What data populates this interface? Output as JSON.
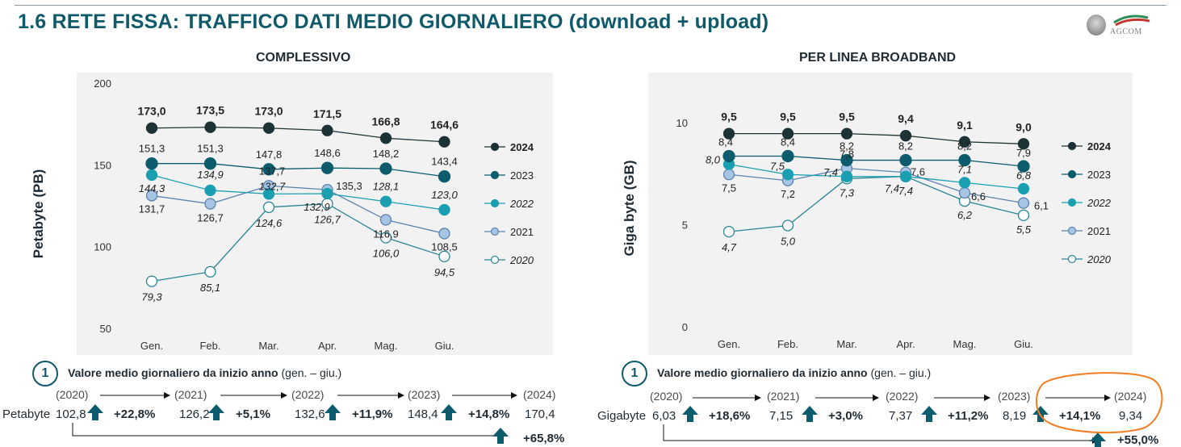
{
  "page": {
    "title": "1.6 RETE FISSA: TRAFFICO DATI MEDIO GIORNALIERO (download + upload)",
    "logo_text": "AGCOM"
  },
  "colors": {
    "2024": "#1c3336",
    "2023": "#0d5c6e",
    "2022": "#1a9fb0",
    "2021": "#8fb4d9",
    "2020": "#2a8694",
    "title": "#0e5a6a",
    "highlight": "#ef7d22"
  },
  "chart_data": [
    {
      "type": "line",
      "title": "COMPLESSIVO",
      "ylabel": "Petabyte (PB)",
      "ylim": [
        50,
        200
      ],
      "yticks": [
        "50",
        "100",
        "150",
        "200"
      ],
      "categories": [
        "Gen.",
        "Feb.",
        "Mar.",
        "Apr.",
        "Mag.",
        "Giu."
      ],
      "series": [
        {
          "name": "2024",
          "values": [
            173.0,
            173.5,
            173.0,
            171.5,
            166.8,
            164.6
          ],
          "labels": [
            "173,0",
            "173,5",
            "173,0",
            "171,5",
            "166,8",
            "164,6"
          ]
        },
        {
          "name": "2023",
          "values": [
            151.3,
            151.3,
            147.8,
            148.6,
            148.2,
            143.4
          ],
          "labels": [
            "151,3",
            "151,3",
            "147,8",
            "148,6",
            "148,2",
            "143,4"
          ]
        },
        {
          "name": "2022",
          "values": [
            144.3,
            134.9,
            132.7,
            132.9,
            128.1,
            123.0
          ],
          "labels": [
            "144,3",
            "134,9",
            "132,7",
            "132,9",
            "128,1",
            "123,0"
          ]
        },
        {
          "name": "2021",
          "values": [
            131.7,
            126.7,
            137.7,
            135.3,
            116.9,
            108.5
          ],
          "labels": [
            "131,7",
            "126,7",
            "137,7",
            "135,3",
            "116,9",
            "108,5"
          ]
        },
        {
          "name": "2020",
          "values": [
            79.3,
            85.1,
            124.6,
            126.7,
            106.0,
            94.5
          ],
          "labels": [
            "79,3",
            "85,1",
            "124,6",
            "126,7",
            "106,0",
            "94,5"
          ]
        }
      ]
    },
    {
      "type": "line",
      "title": "PER LINEA BROADBAND",
      "ylabel": "Giga byte (GB)",
      "ylim": [
        0,
        10
      ],
      "yticks": [
        "0",
        "5",
        "10"
      ],
      "categories": [
        "Gen.",
        "Feb.",
        "Mar.",
        "Apr.",
        "Mag.",
        "Giu."
      ],
      "series": [
        {
          "name": "2024",
          "values": [
            9.5,
            9.5,
            9.5,
            9.4,
            9.1,
            9.0
          ],
          "labels": [
            "9,5",
            "9,5",
            "9,5",
            "9,4",
            "9,1",
            "9,0"
          ]
        },
        {
          "name": "2023",
          "values": [
            8.4,
            8.4,
            8.2,
            8.2,
            8.2,
            7.9
          ],
          "labels": [
            "8,4",
            "8,4",
            "8,2",
            "8,2",
            "8,2",
            "7,9"
          ]
        },
        {
          "name": "2022",
          "values": [
            8.0,
            7.5,
            7.4,
            7.4,
            7.1,
            6.8
          ],
          "labels": [
            "8,0",
            "7,5",
            "7,4",
            "7,4",
            "7,1",
            "6,8"
          ]
        },
        {
          "name": "2021",
          "values": [
            7.5,
            7.2,
            7.8,
            7.6,
            6.6,
            6.1
          ],
          "labels": [
            "7,5",
            "7,2",
            "7,8",
            "7,6",
            "6,6",
            "6,1"
          ]
        },
        {
          "name": "2020",
          "values": [
            4.7,
            5.0,
            7.3,
            7.4,
            6.2,
            5.5
          ],
          "labels": [
            "4,7",
            "5,0",
            "7,3",
            "7,4",
            "6,2",
            "5,5"
          ]
        }
      ]
    }
  ],
  "summary": [
    {
      "number": "1",
      "heading_bold": "Valore medio giornaliero da inizio anno",
      "heading_rest": " (gen. – giu.)",
      "unit": "Petabyte",
      "years": [
        "(2020)",
        "(2021)",
        "(2022)",
        "(2023)",
        "(2024)"
      ],
      "values": [
        "102,8",
        "126,2",
        "132,6",
        "148,4",
        "170,4"
      ],
      "growths": [
        "+22,8%",
        "+5,1%",
        "+11,9%",
        "+14,8%"
      ],
      "total_growth": "+65,8%"
    },
    {
      "number": "1",
      "heading_bold": "Valore medio giornaliero da inizio anno",
      "heading_rest": " (gen. – giu.)",
      "unit": "Gigabyte",
      "years": [
        "(2020)",
        "(2021)",
        "(2022)",
        "(2023)",
        "(2024)"
      ],
      "values": [
        "6,03",
        "7,15",
        "7,37",
        "8,19",
        "9,34"
      ],
      "growths": [
        "+18,6%",
        "+3,0%",
        "+11,2%",
        "+14,1%"
      ],
      "total_growth": "+55,0%"
    }
  ]
}
